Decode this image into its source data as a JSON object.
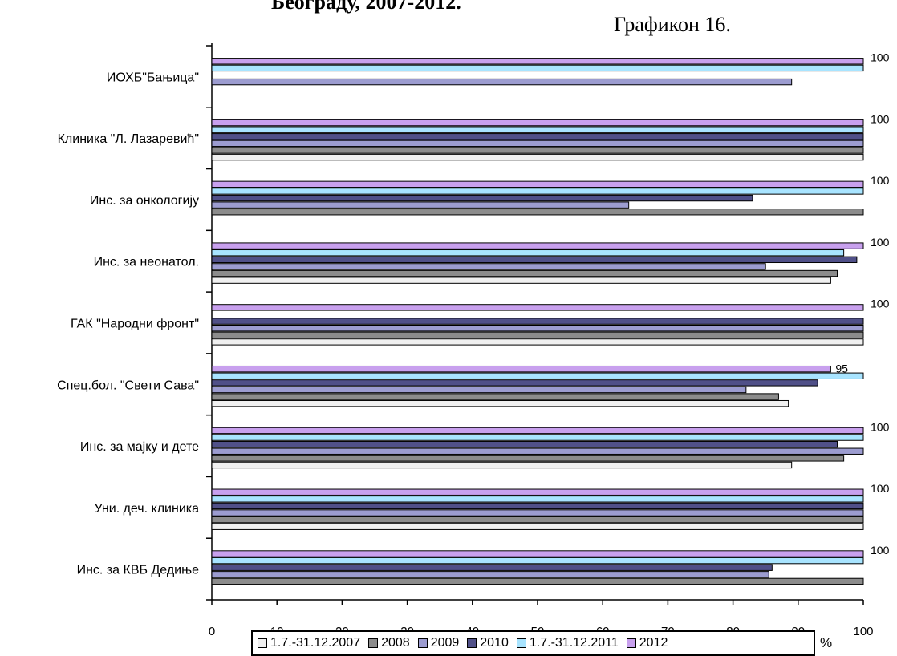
{
  "header": {
    "title": "Београду, 2007-2012.",
    "figure_label": "Графикон 16."
  },
  "chart_data": {
    "type": "bar",
    "orientation": "horizontal",
    "categories": [
      "ИОХБ\"Бањица\"",
      "Клиника \"Л. Лазаревић\"",
      "Инс. за онкологију",
      "Инс. за неонатол.",
      "ГАК \"Народни фронт\"",
      "Спец.бол. \"Свети Сава\"",
      "Инс. за мајку и дете",
      "Уни. деч. клиника",
      "Инс. за КВБ Дедиње"
    ],
    "series": [
      {
        "name": "1.7.-31.12.2007",
        "color": "#f0f0f0",
        "values": [
          null,
          100,
          null,
          95,
          100,
          88.5,
          89,
          100,
          null
        ]
      },
      {
        "name": "2008",
        "color": "#8c8c8c",
        "values": [
          null,
          100,
          100,
          96,
          100,
          87,
          97,
          100,
          100
        ]
      },
      {
        "name": "2009",
        "color": "#9c9cd0",
        "values": [
          89,
          100,
          64,
          85,
          100,
          82,
          100,
          100,
          85.5
        ]
      },
      {
        "name": "2010",
        "color": "#505088",
        "values": [
          null,
          100,
          83,
          99,
          100,
          93,
          96,
          100,
          86
        ]
      },
      {
        "name": "1.7.-31.12.2011",
        "color": "#a8e4ff",
        "values": [
          100,
          100,
          100,
          97,
          null,
          100,
          100,
          100,
          100
        ]
      },
      {
        "name": "2012",
        "color": "#c8a0ee",
        "values": [
          100,
          100,
          100,
          100,
          100,
          95,
          100,
          100,
          100
        ]
      }
    ],
    "data_labels": [
      "100",
      "100",
      "100",
      "100",
      "100",
      "95",
      "100",
      "100",
      "100"
    ],
    "x_ticks": [
      "0",
      "10",
      "20",
      "30",
      "40",
      "50",
      "60",
      "70",
      "80",
      "90",
      "100"
    ],
    "xlim": [
      0,
      100
    ],
    "xlabel": "%",
    "grid": false,
    "legend_position": "bottom"
  }
}
